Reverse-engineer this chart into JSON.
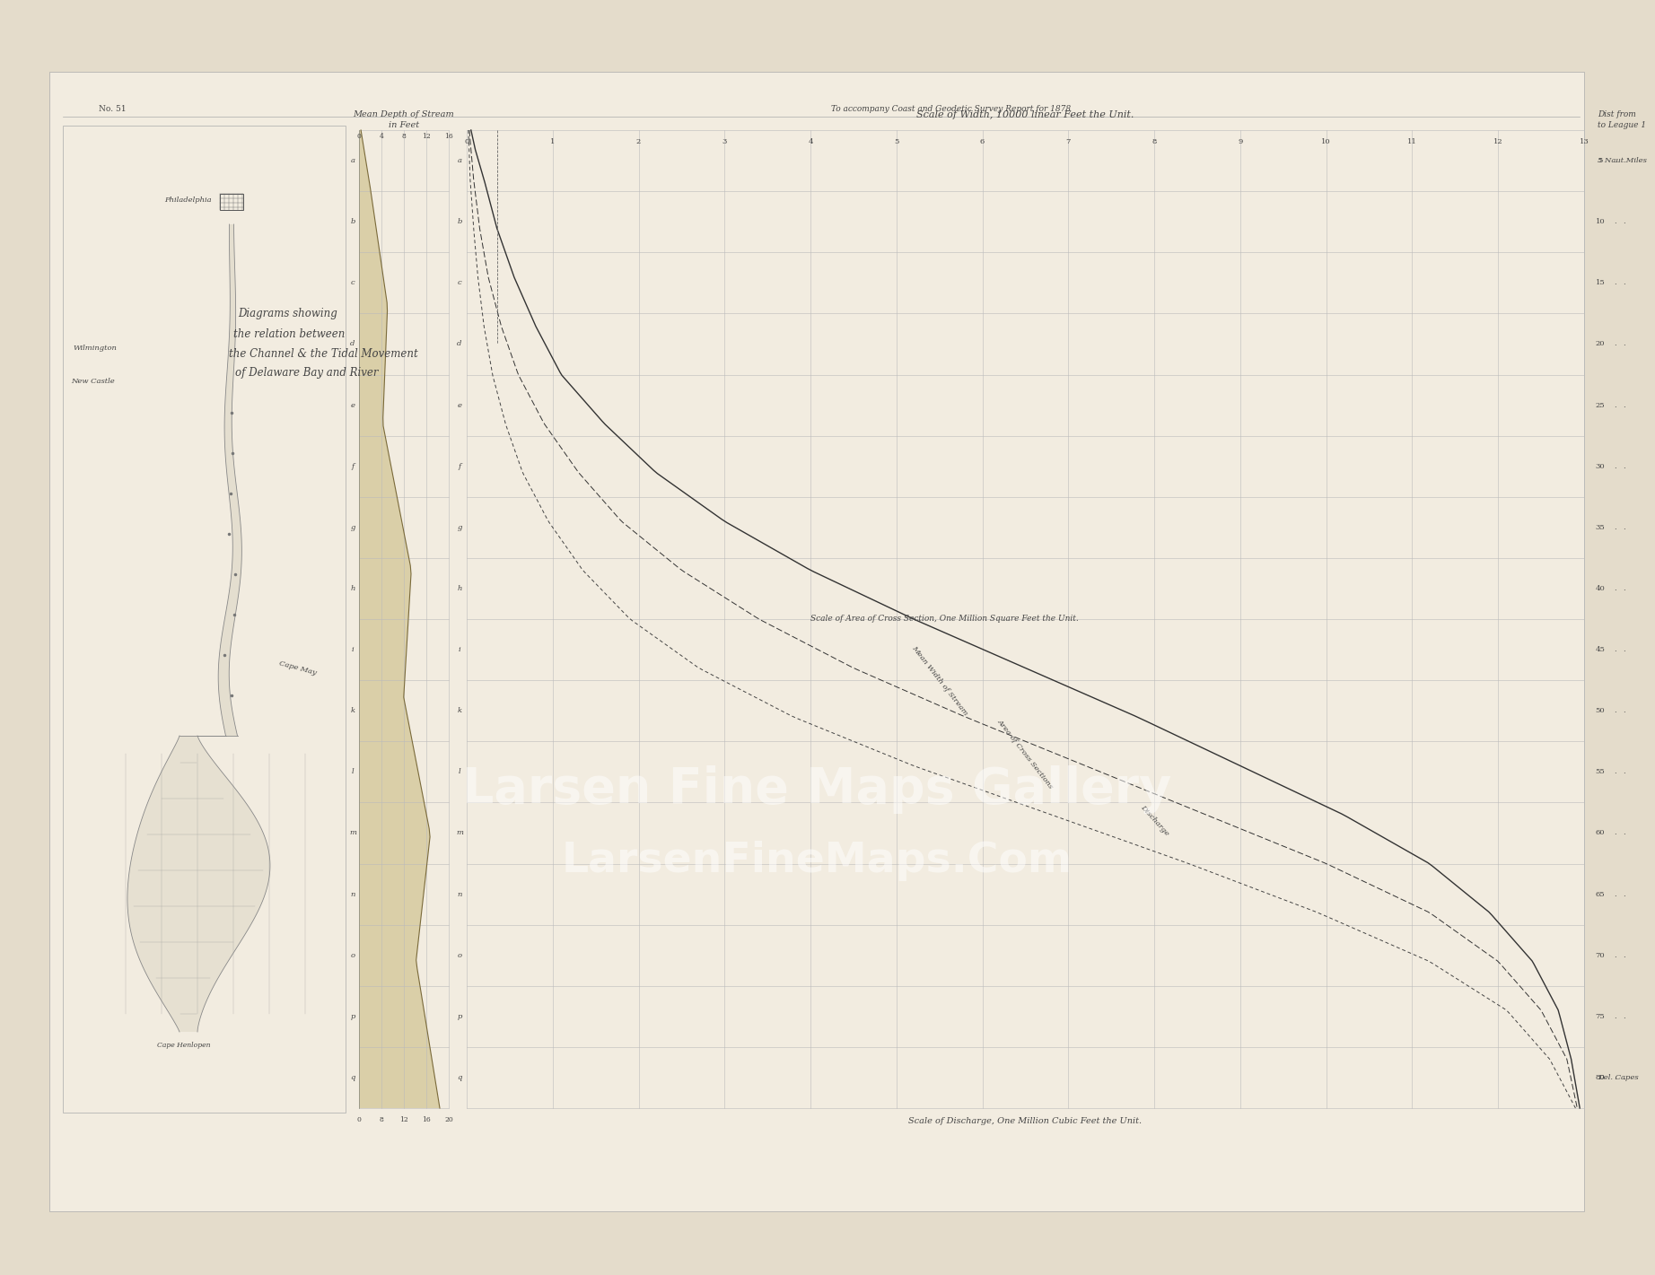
{
  "background_color": "#e4dccb",
  "paper_color": "#f2ece0",
  "border_color": "#999999",
  "line_color": "#444444",
  "grid_color": "#bbbbbb",
  "title_top": "To accompany Coast and Geodetic Survey Report for 1878",
  "number_label": "No. 51",
  "depth_chart_title_1": "Mean Depth of Stream",
  "depth_chart_title_2": "in Feet",
  "width_chart_title": "Scale of Width, 10000 linear Feet the Unit.",
  "area_label": "Scale of Area of Cross Section, One Million Square Feet the Unit.",
  "discharge_label": "Scale of Discharge, One Million Cubic Feet the Unit.",
  "dist_label_1": "Dist from",
  "dist_label_2": "to League 1",
  "naut_miles_label": "5 Naut Miles",
  "del_capes_label": "Del. Capes",
  "row_labels": [
    "a",
    "b",
    "c",
    "d",
    "e",
    "f",
    "g",
    "h",
    "i",
    "k",
    "l",
    "m",
    "n",
    "o",
    "p",
    "q"
  ],
  "col_labels_width": [
    "0",
    "1",
    "2",
    "3",
    "4",
    "5",
    "6",
    "7",
    "8",
    "9",
    "10",
    "11",
    "12",
    "13"
  ],
  "right_axis_values": [
    "5",
    "10",
    "15",
    "20",
    "25",
    "30",
    "35",
    "40",
    "45",
    "50",
    "55",
    "60",
    "65",
    "70",
    "75",
    "80"
  ],
  "philadelphia_label": "Philadelphia",
  "wilmington_label": "Wilmington",
  "new_castle_label": "New Castle",
  "cape_may_label": "Cape May",
  "cape_henlopen_label": "Cape Henlopen",
  "text_color": "#444444",
  "curve_color": "#333333",
  "depth_fill_color": "#c8b87a",
  "bay_fill_color": "#d8d2c0",
  "watermark_line1": "Larsen Fine Maps Gallery",
  "watermark_line2": "LarsenFineMaps.Com"
}
